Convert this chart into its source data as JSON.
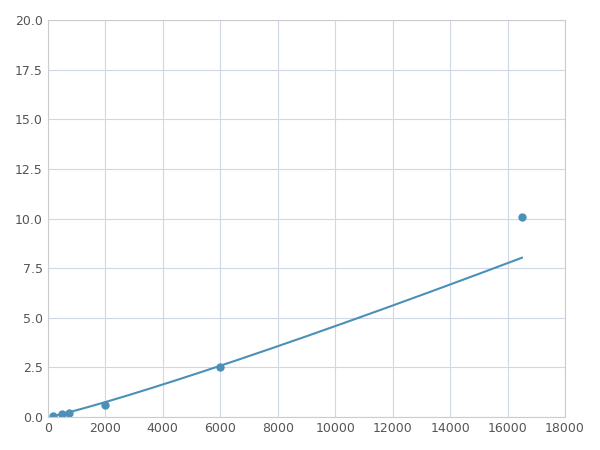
{
  "x_points": [
    200,
    500,
    750,
    2000,
    6000,
    16500
  ],
  "y_points": [
    0.08,
    0.15,
    0.2,
    0.6,
    2.5,
    10.1
  ],
  "line_color": "#4a90b8",
  "marker_color": "#4a90b8",
  "marker_size": 5,
  "line_width": 1.5,
  "xlim": [
    0,
    18000
  ],
  "ylim": [
    0,
    20.0
  ],
  "xticks": [
    0,
    2000,
    4000,
    6000,
    8000,
    10000,
    12000,
    14000,
    16000,
    18000
  ],
  "yticks": [
    0.0,
    2.5,
    5.0,
    7.5,
    10.0,
    12.5,
    15.0,
    17.5,
    20.0
  ],
  "grid_color": "#d0d8e8",
  "background_color": "#ffffff",
  "fig_bg_color": "#ffffff"
}
